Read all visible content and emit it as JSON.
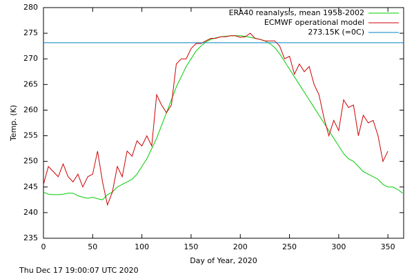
{
  "chart_data": {
    "type": "line",
    "x_label": "Day of Year, 2020",
    "y_label": "Temp. (K)",
    "footer": "Thu Dec 17 19:00:07 UTC 2020",
    "xlim": [
      0,
      366
    ],
    "xticks": [
      0,
      50,
      100,
      150,
      200,
      250,
      300,
      350
    ],
    "ylim": [
      235,
      280
    ],
    "yticks": [
      235,
      240,
      245,
      250,
      255,
      260,
      265,
      270,
      275,
      280
    ],
    "x": [
      0,
      5,
      10,
      15,
      20,
      25,
      30,
      35,
      40,
      45,
      50,
      55,
      60,
      65,
      70,
      75,
      80,
      85,
      90,
      95,
      100,
      105,
      110,
      115,
      120,
      125,
      130,
      135,
      140,
      145,
      150,
      155,
      160,
      165,
      170,
      175,
      180,
      185,
      190,
      195,
      200,
      205,
      210,
      215,
      220,
      225,
      230,
      235,
      240,
      245,
      250,
      255,
      260,
      265,
      270,
      275,
      280,
      285,
      290,
      295,
      300,
      305,
      310,
      315,
      320,
      325,
      330,
      335,
      340,
      345,
      350,
      355,
      360,
      365
    ],
    "series": [
      {
        "name": "ERA40 reanalysis, mean 1958-2002",
        "color": "#00cc00",
        "values": [
          244,
          243.6,
          243.5,
          243.5,
          243.6,
          243.8,
          243.8,
          243.3,
          243,
          242.8,
          243,
          242.7,
          242.5,
          243.5,
          244,
          245,
          245.5,
          246,
          246.5,
          247.5,
          249,
          250.5,
          252.5,
          254.5,
          257,
          259.5,
          262,
          264.5,
          266.5,
          268.5,
          270,
          271.5,
          272.5,
          273.3,
          273.8,
          274.1,
          274.3,
          274.4,
          274.5,
          274.5,
          274.5,
          274.4,
          274.2,
          274,
          273.8,
          273.5,
          273,
          272.2,
          271,
          269.5,
          268,
          266.5,
          265,
          263.5,
          262,
          260.5,
          259,
          257.5,
          256,
          254.5,
          253,
          251.5,
          250.5,
          250,
          249,
          248,
          247.5,
          247,
          246.5,
          245.5,
          245,
          245,
          244.5,
          243.8
        ]
      },
      {
        "name": "ECMWF operational model",
        "color": "#cc0000",
        "values": [
          245.5,
          249,
          248,
          247,
          249.5,
          247,
          246,
          247.5,
          245,
          247,
          247.5,
          252,
          246,
          241.5,
          244,
          249,
          247,
          252,
          251,
          254,
          253,
          255,
          253,
          263,
          261,
          259.5,
          261,
          269,
          270,
          270,
          272,
          273,
          273,
          273.5,
          274,
          274,
          274.3,
          274.3,
          274.5,
          274.5,
          274.2,
          274.3,
          275,
          274,
          273.8,
          273.5,
          273.5,
          273.5,
          272.5,
          270,
          270.5,
          267,
          269,
          267.5,
          268.5,
          265,
          263,
          258.5,
          255,
          258,
          256,
          262,
          260.5,
          261,
          255,
          259,
          257.5,
          258,
          255,
          250,
          252,
          null,
          null,
          null
        ]
      }
    ],
    "hline": {
      "name": "273.15K (=0C)",
      "color": "#0080c0",
      "value": 273.15
    }
  }
}
